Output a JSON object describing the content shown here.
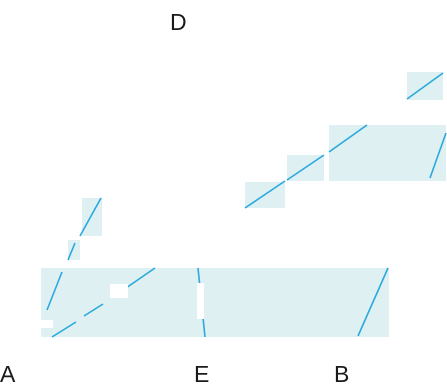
{
  "labels": {
    "a": "A",
    "b": "B",
    "d": "D",
    "e": "E"
  },
  "colors": {
    "line": "#29a9dd",
    "patch": "#dff0f3",
    "text": "#1a1a1a",
    "background": "#ffffff"
  }
}
